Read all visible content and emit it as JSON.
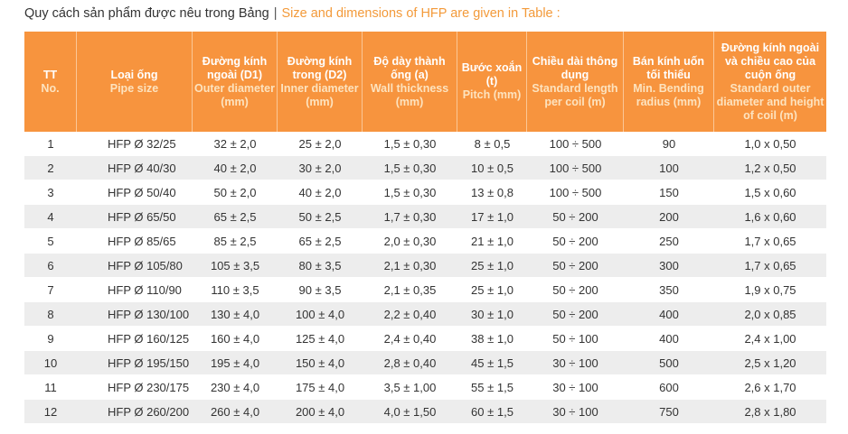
{
  "caption": {
    "vi": "Quy cách sản phẩm được nêu trong Bảng",
    "sep": "|",
    "en": "Size and dimensions of HFP are given in Table :"
  },
  "table": {
    "headers": [
      {
        "vi": "TT",
        "en": "No."
      },
      {
        "vi": "Loại ống",
        "en": "Pipe size"
      },
      {
        "vi": "Đường kính ngoài (D1)",
        "en": "Outer diameter (mm)"
      },
      {
        "vi": "Đường kính trong (D2)",
        "en": "Inner diameter (mm)"
      },
      {
        "vi": "Độ dày thành ống (a)",
        "en": "Wall thickness (mm)"
      },
      {
        "vi": "Bước xoắn (t)",
        "en": "Pitch (mm)"
      },
      {
        "vi": "Chiều dài thông dụng",
        "en": "Standard length per coil (m)"
      },
      {
        "vi": "Bán kính uốn tối thiểu",
        "en": "Min. Bending radius (mm)"
      },
      {
        "vi": "Đường kính ngoài và chiều cao của cuộn ống",
        "en": "Standard outer diameter and height of coil (m)"
      }
    ],
    "rows": [
      [
        "1",
        "HFP Ø 32/25",
        "32 ± 2,0",
        "25 ± 2,0",
        "1,5 ± 0,30",
        "8 ± 0,5",
        "100 ÷ 500",
        "90",
        "1,0 x 0,50"
      ],
      [
        "2",
        "HFP Ø 40/30",
        "40 ± 2,0",
        "30 ± 2,0",
        "1,5 ± 0,30",
        "10 ± 0,5",
        "100 ÷ 500",
        "100",
        "1,2 x 0,50"
      ],
      [
        "3",
        "HFP Ø 50/40",
        "50 ± 2,0",
        "40 ± 2,0",
        "1,5 ± 0,30",
        "13 ± 0,8",
        "100 ÷ 500",
        "150",
        "1,5 x 0,60"
      ],
      [
        "4",
        "HFP Ø 65/50",
        "65 ± 2,5",
        "50 ± 2,5",
        "1,7 ± 0,30",
        "17 ± 1,0",
        "50 ÷ 200",
        "200",
        "1,6 x 0,60"
      ],
      [
        "5",
        "HFP Ø 85/65",
        "85 ± 2,5",
        "65 ± 2,5",
        "2,0 ± 0,30",
        "21 ± 1,0",
        "50 ÷ 200",
        "250",
        "1,7 x 0,65"
      ],
      [
        "6",
        "HFP Ø 105/80",
        "105 ± 3,5",
        "80 ± 3,5",
        "2,1 ± 0,30",
        "25 ± 1,0",
        "50 ÷ 200",
        "300",
        "1,7 x 0,65"
      ],
      [
        "7",
        "HFP Ø 110/90",
        "110 ± 3,5",
        "90 ± 3,5",
        "2,1 ± 0,35",
        "25 ± 1,0",
        "50 ÷ 200",
        "350",
        "1,9 x 0,75"
      ],
      [
        "8",
        "HFP Ø 130/100",
        "130 ± 4,0",
        "100 ± 4,0",
        "2,2 ± 0,40",
        "30 ± 1,0",
        "50 ÷ 200",
        "400",
        "2,0 x 0,85"
      ],
      [
        "9",
        "HFP Ø 160/125",
        "160 ± 4,0",
        "125 ± 4,0",
        "2,4 ± 0,40",
        "38 ± 1,0",
        "50 ÷ 100",
        "400",
        "2,4 x 1,00"
      ],
      [
        "10",
        "HFP Ø 195/150",
        "195 ± 4,0",
        "150 ± 4,0",
        "2,8 ± 0,40",
        "45 ± 1,5",
        "30 ÷ 100",
        "500",
        "2,5 x 1,20"
      ],
      [
        "11",
        "HFP Ø 230/175",
        "230 ± 4,0",
        "175 ± 4,0",
        "3,5 ± 1,00",
        "55 ± 1,5",
        "30 ÷ 100",
        "600",
        "2,6 x 1,70"
      ],
      [
        "12",
        "HFP Ø 260/200",
        "260 ± 4,0",
        "200 ± 4,0",
        "4,0 ± 1,50",
        "60 ± 1,5",
        "30 ÷ 100",
        "750",
        "2,8 x 1,80"
      ]
    ]
  }
}
